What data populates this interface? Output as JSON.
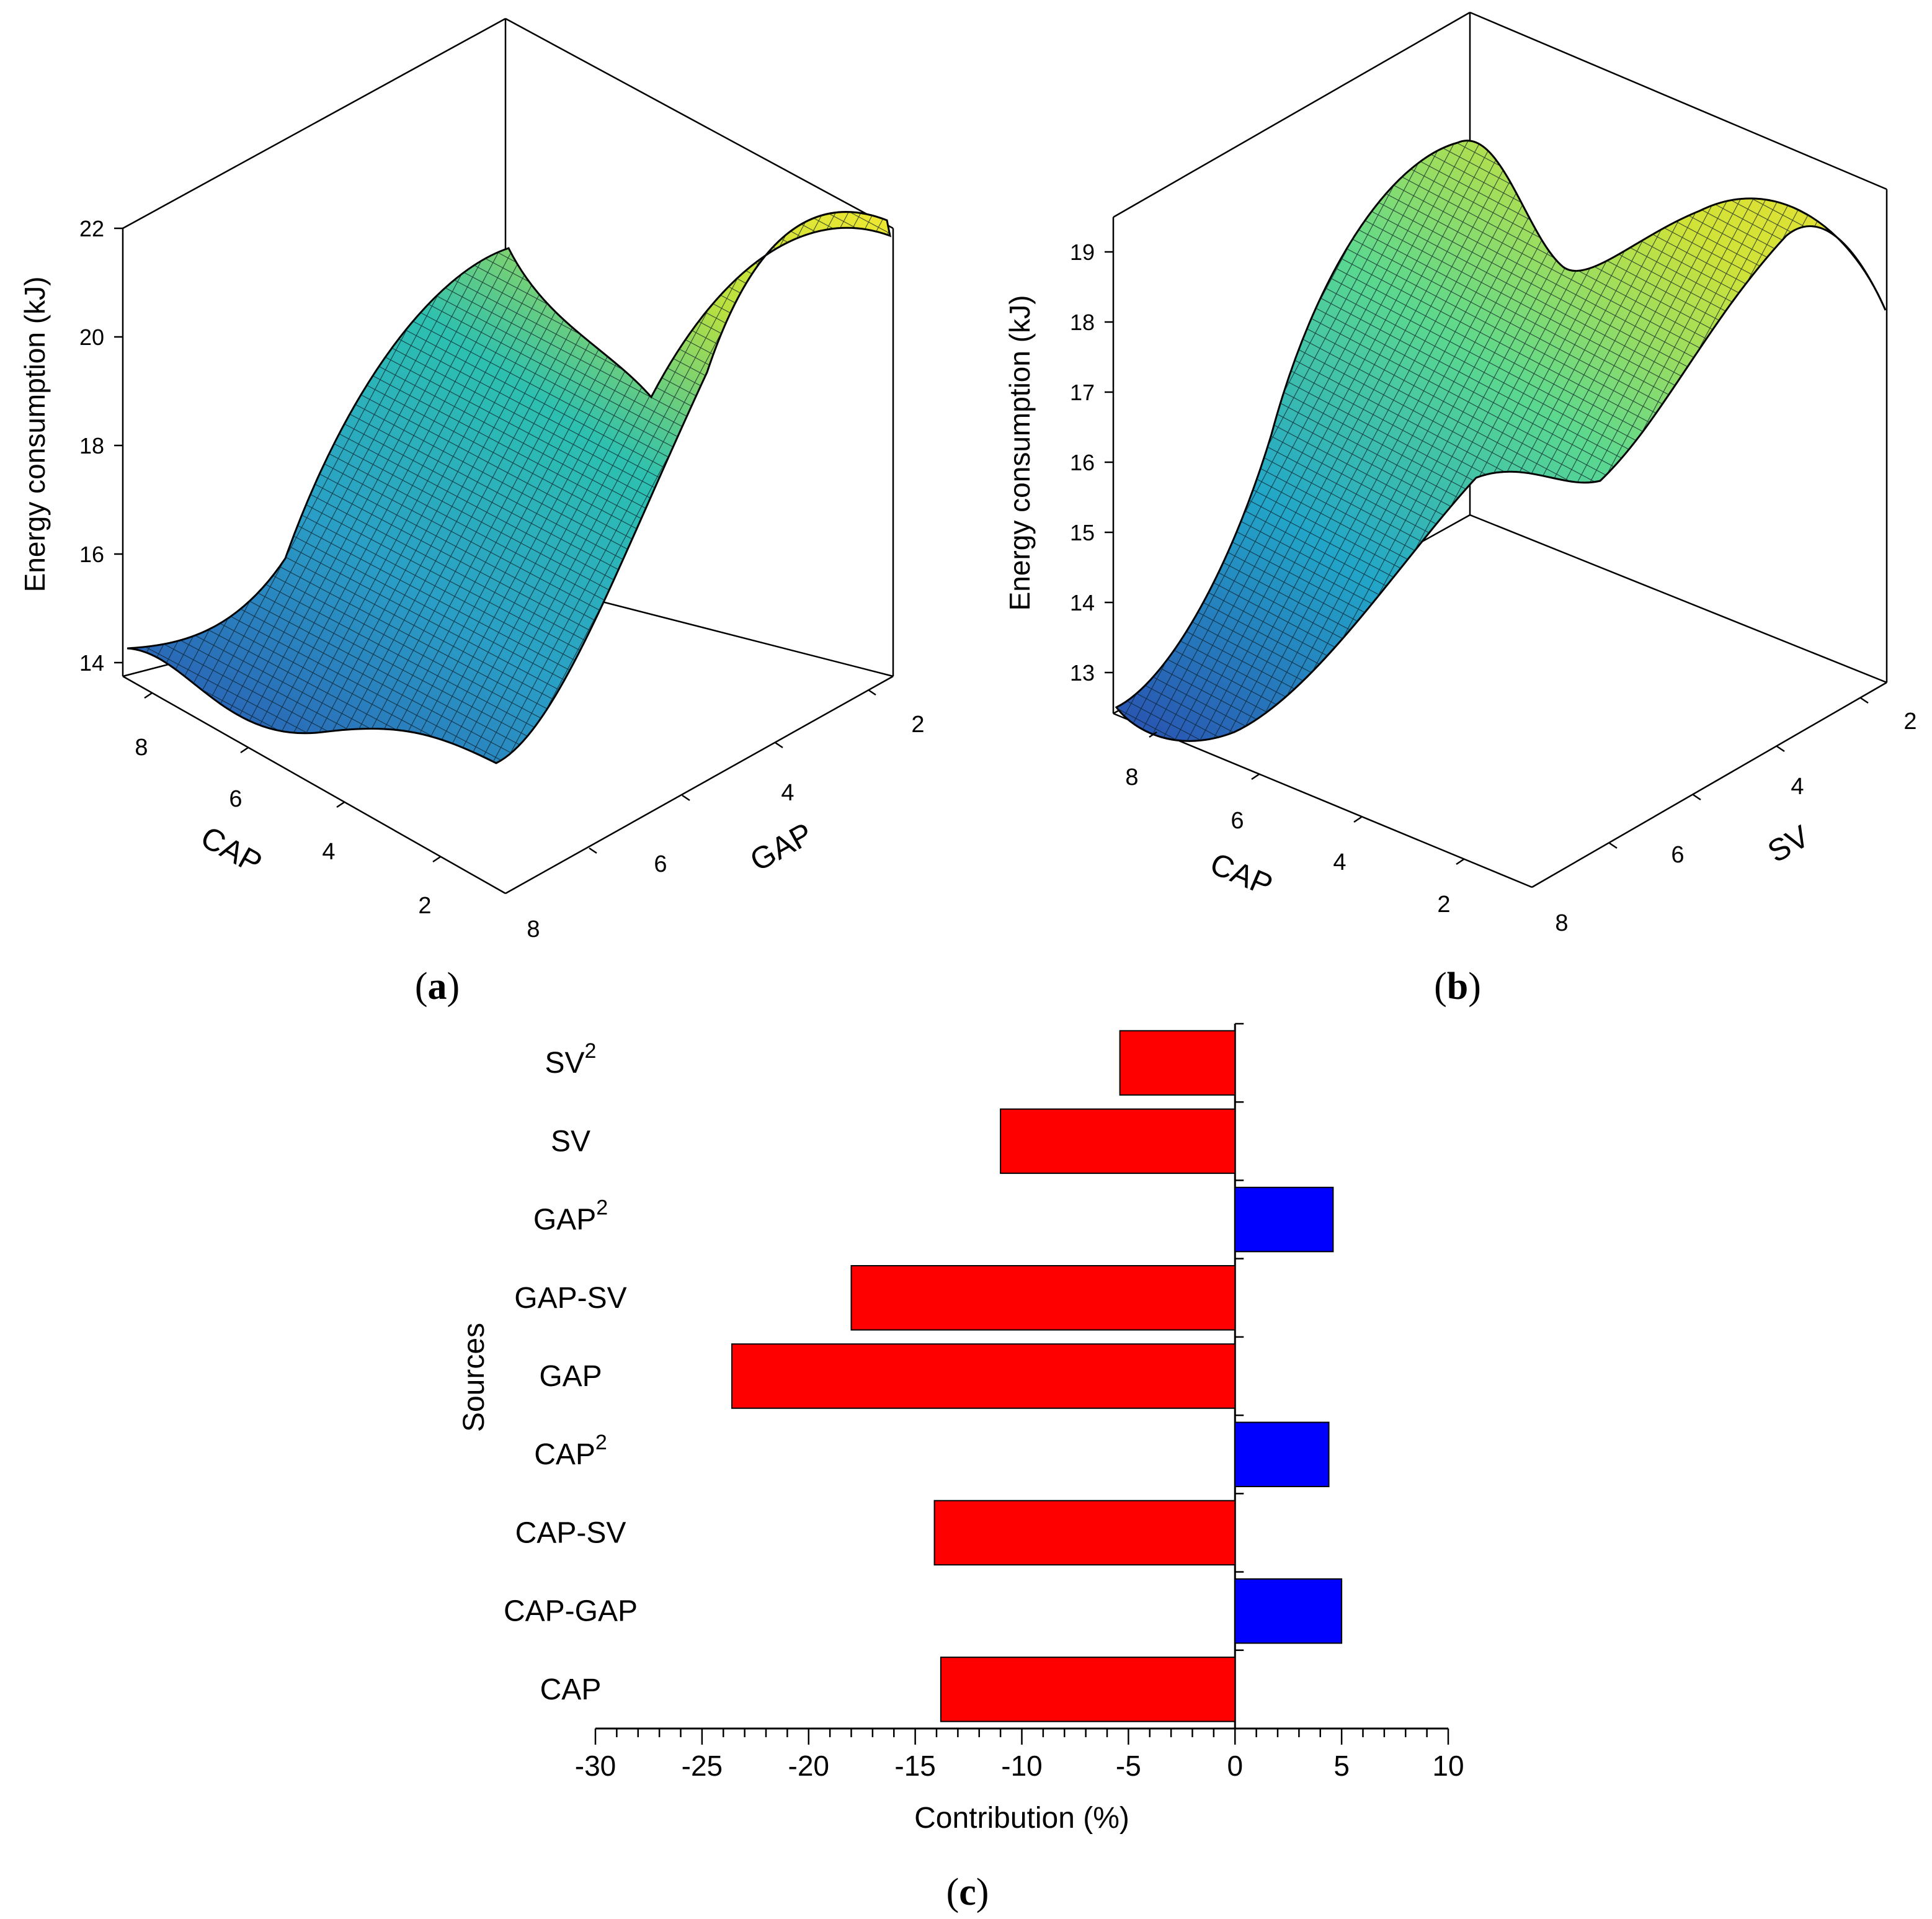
{
  "panels": {
    "a": {
      "caption": "a",
      "z_label": "Energy consumption  (kJ)",
      "z_ticks": [
        "14",
        "16",
        "18",
        "20",
        "22"
      ],
      "x_label": "CAP",
      "x_ticks": [
        "8",
        "6",
        "4",
        "2"
      ],
      "y_label": "GAP",
      "y_ticks": [
        "2",
        "4",
        "6",
        "8"
      ]
    },
    "b": {
      "caption": "b",
      "z_label": "Energy consumption  (kJ)",
      "z_ticks": [
        "13",
        "14",
        "15",
        "16",
        "17",
        "18",
        "19"
      ],
      "x_label": "CAP",
      "x_ticks": [
        "8",
        "6",
        "4",
        "2"
      ],
      "y_label": "SV",
      "y_ticks": [
        "2",
        "4",
        "6",
        "8"
      ]
    },
    "c": {
      "caption": "c"
    }
  },
  "chart_data": [
    {
      "type": "surface",
      "title": "(a)",
      "xlabel": "CAP",
      "ylabel": "GAP",
      "zlabel": "Energy consumption  (kJ)",
      "xlim": [
        1,
        9
      ],
      "ylim": [
        1,
        9
      ],
      "zlim": [
        14,
        22
      ]
    },
    {
      "type": "surface",
      "title": "(b)",
      "xlabel": "CAP",
      "ylabel": "SV",
      "zlabel": "Energy consumption  (kJ)",
      "xlim": [
        1,
        9
      ],
      "ylim": [
        1,
        9
      ],
      "zlim": [
        13,
        19
      ]
    },
    {
      "type": "bar",
      "orientation": "horizontal",
      "title": "(c)",
      "xlabel": "Contribution (%)",
      "ylabel": "Sources",
      "xlim": [
        -30,
        10
      ],
      "x_ticks": [
        -30,
        -25,
        -20,
        -15,
        -10,
        -5,
        0,
        5,
        10
      ],
      "categories": [
        {
          "base": "SV",
          "sup": "2"
        },
        {
          "base": "SV",
          "sup": ""
        },
        {
          "base": "GAP",
          "sup": "2"
        },
        {
          "base": "GAP-SV",
          "sup": ""
        },
        {
          "base": "GAP",
          "sup": ""
        },
        {
          "base": "CAP",
          "sup": "2"
        },
        {
          "base": "CAP-SV",
          "sup": ""
        },
        {
          "base": "CAP-GAP",
          "sup": ""
        },
        {
          "base": "CAP",
          "sup": ""
        }
      ],
      "values": [
        -5.4,
        -11.0,
        4.6,
        -18.0,
        -23.6,
        4.4,
        -14.1,
        5.0,
        -13.8
      ],
      "colors": {
        "positive": "#0000ff",
        "negative": "#ff0000"
      }
    }
  ]
}
